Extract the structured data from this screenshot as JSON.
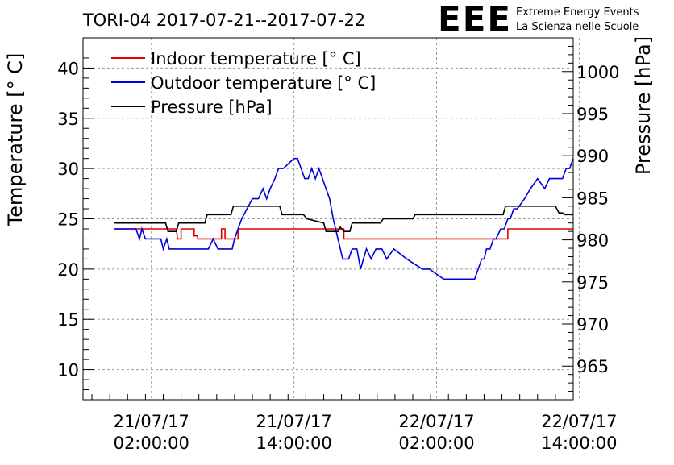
{
  "header": {
    "title": "TORI-04 2017-07-21--2017-07-22",
    "logo_text": "EEE",
    "org_line1": "Extreme Energy Events",
    "org_line2": "La Scienza nelle Scuole"
  },
  "colors": {
    "indoor": "#e00000",
    "outdoor": "#0000dd",
    "pressure": "#000000",
    "logo": "#1414e6",
    "grid": "#9a9a9a"
  },
  "chart_data": {
    "type": "line",
    "title": "TORI-04 2017-07-21--2017-07-22",
    "ylabel": "Temperature [° C]",
    "y2label": "Pressure [hPa]",
    "x_unit": "hours since 2017-07-21 00:00",
    "xlim": [
      -3.75,
      37.5
    ],
    "ylim": [
      7,
      43
    ],
    "y2lim": [
      961,
      1004
    ],
    "grid": true,
    "legend_position": "top-left",
    "x_ticks": [
      {
        "x": 2,
        "date": "21/07/17",
        "time": "02:00:00"
      },
      {
        "x": 14,
        "date": "21/07/17",
        "time": "14:00:00"
      },
      {
        "x": 26,
        "date": "22/07/17",
        "time": "02:00:00"
      },
      {
        "x": 38,
        "date": "22/07/17",
        "time": "14:00:00"
      }
    ],
    "y_ticks": [
      10,
      15,
      20,
      25,
      30,
      35,
      40
    ],
    "y2_ticks": [
      965,
      970,
      975,
      980,
      985,
      990,
      995,
      1000
    ],
    "series": [
      {
        "name": "Indoor temperature [° C]",
        "axis": "left",
        "color": "#e00000",
        "x": [
          -1.1,
          4.1,
          4.2,
          4.5,
          4.5,
          5.6,
          5.6,
          5.9,
          5.9,
          6.4,
          6.4,
          7.9,
          7.9,
          8.2,
          8.2,
          8.6,
          8.6,
          9.3,
          9.3,
          14.5,
          14.5,
          16.8,
          16.8,
          18.2,
          18.2,
          25.1,
          25.1,
          31.1,
          31.1,
          32.0,
          32.0,
          37.5
        ],
        "y": [
          24,
          24,
          23,
          23,
          24,
          24,
          23.3,
          23.3,
          23,
          23,
          23,
          23,
          24,
          24,
          23,
          23,
          23,
          23,
          24,
          24,
          24,
          24,
          24,
          24,
          23,
          23,
          23,
          23,
          23,
          23,
          24,
          24
        ]
      },
      {
        "name": "Outdoor temperature [° C]",
        "axis": "left",
        "color": "#0000dd",
        "x": [
          -1.1,
          0.7,
          1.0,
          1.2,
          1.5,
          1.7,
          2.8,
          3.0,
          3.3,
          3.5,
          4.2,
          6.8,
          7.2,
          7.6,
          8.8,
          9.0,
          9.6,
          10.5,
          11.0,
          11.4,
          11.7,
          12.0,
          12.4,
          12.7,
          13.1,
          14.0,
          14.3,
          14.6,
          14.9,
          15.2,
          15.5,
          15.8,
          16.1,
          16.4,
          16.7,
          17.0,
          17.3,
          17.7,
          18.1,
          18.6,
          18.9,
          19.3,
          19.6,
          20.1,
          20.5,
          20.9,
          21.4,
          21.8,
          22.4,
          23.5,
          24.8,
          25.4,
          26.6,
          27.0,
          29.2,
          29.5,
          29.8,
          30.0,
          30.2,
          30.5,
          30.8,
          31.0,
          31.4,
          31.7,
          32.0,
          32.2,
          32.5,
          32.8,
          33.4,
          33.9,
          34.5,
          35.1,
          35.5,
          35.8,
          36.6,
          36.9,
          37.2,
          37.5
        ],
        "y": [
          24,
          24,
          23,
          24,
          23,
          23,
          23,
          22,
          23,
          22,
          22,
          22,
          23,
          22,
          22,
          23,
          25,
          27,
          27,
          28,
          27,
          28,
          29,
          30,
          30,
          31,
          31,
          30,
          29,
          29,
          30,
          29,
          30,
          29,
          28,
          27,
          25,
          23,
          21,
          21,
          22,
          22,
          20,
          22,
          21,
          22,
          22,
          21,
          22,
          21,
          20,
          20,
          19,
          19,
          19,
          20,
          21,
          21,
          22,
          22,
          23,
          23,
          24,
          24,
          25,
          25,
          26,
          26,
          27,
          28,
          29,
          28,
          29,
          29,
          29,
          30,
          30,
          31
        ]
      },
      {
        "name": "Pressure [hPa]",
        "axis": "right",
        "color": "#000000",
        "x": [
          -1.1,
          3.2,
          3.4,
          4.1,
          4.3,
          6.5,
          6.7,
          8.7,
          8.9,
          12.8,
          13.0,
          14.8,
          15.1,
          16.5,
          16.7,
          17.7,
          17.9,
          18.2,
          18.4,
          18.7,
          18.9,
          21.3,
          21.5,
          24.0,
          24.2,
          27.3,
          27.5,
          29.1,
          29.3,
          31.6,
          31.8,
          36.0,
          36.3,
          36.6,
          36.8,
          37.5
        ],
        "y": [
          982,
          982,
          981,
          981,
          982,
          982,
          983,
          983,
          984,
          984,
          983,
          983,
          982.5,
          982,
          981,
          981,
          981.5,
          981,
          981,
          981,
          982,
          982,
          982.5,
          982.5,
          983,
          983,
          983,
          983,
          983,
          983,
          984,
          984,
          983.2,
          983.2,
          983,
          983
        ]
      }
    ]
  }
}
